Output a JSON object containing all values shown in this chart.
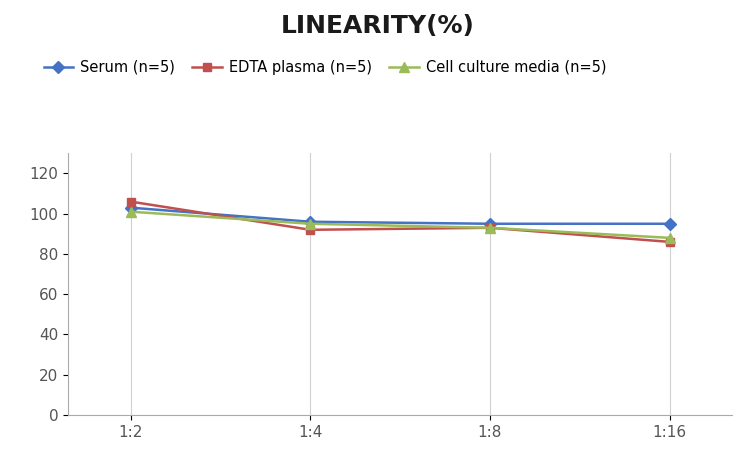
{
  "title": "LINEARITY(%)",
  "x_labels": [
    "1:2",
    "1:4",
    "1:8",
    "1:16"
  ],
  "x_positions": [
    0,
    1,
    2,
    3
  ],
  "series": [
    {
      "name": "Serum (n=5)",
      "values": [
        103,
        96,
        95,
        95
      ],
      "color": "#4472C4",
      "marker": "D",
      "marker_size": 6
    },
    {
      "name": "EDTA plasma (n=5)",
      "values": [
        106,
        92,
        93,
        86
      ],
      "color": "#C0504D",
      "marker": "s",
      "marker_size": 6
    },
    {
      "name": "Cell culture media (n=5)",
      "values": [
        101,
        95,
        93,
        88
      ],
      "color": "#9BBB59",
      "marker": "^",
      "marker_size": 7
    }
  ],
  "ylim": [
    0,
    130
  ],
  "yticks": [
    0,
    20,
    40,
    60,
    80,
    100,
    120
  ],
  "title_fontsize": 18,
  "legend_fontsize": 10.5,
  "tick_fontsize": 11,
  "background_color": "#ffffff",
  "grid_color": "#D0D0D0",
  "line_width": 1.8
}
